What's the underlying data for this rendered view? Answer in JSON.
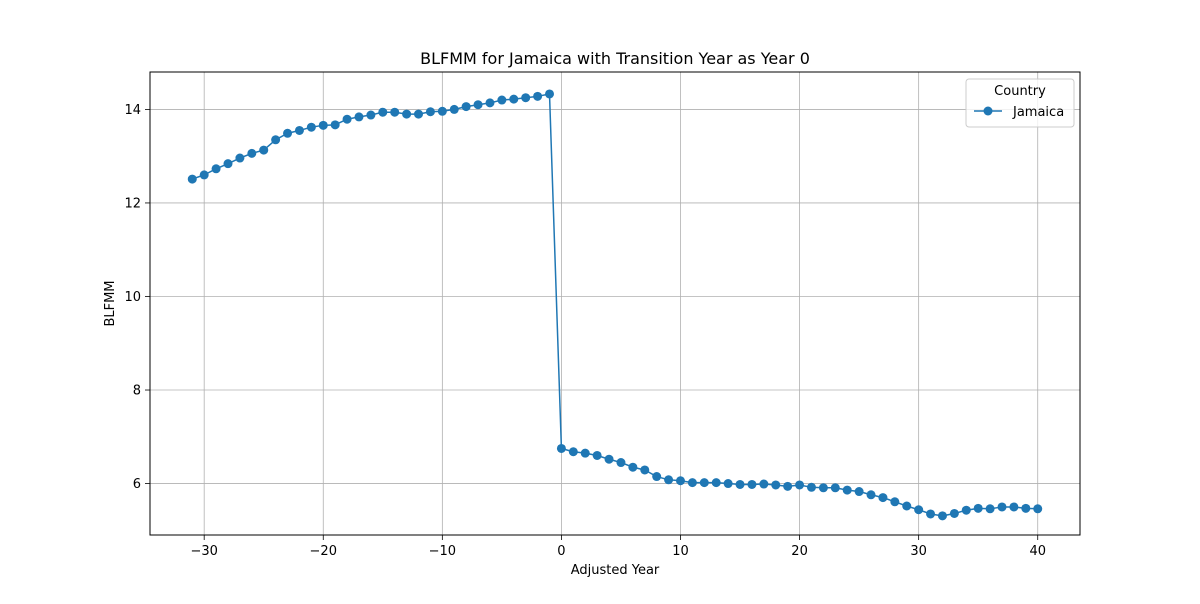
{
  "chart_data": {
    "type": "line",
    "title": "BLFMM for Jamaica with Transition Year as Year 0",
    "xlabel": "Adjusted Year",
    "ylabel": "BLFMM",
    "xlim": [
      -34.55,
      43.55
    ],
    "ylim": [
      4.9,
      14.8
    ],
    "xticks": [
      -30,
      -20,
      -10,
      0,
      10,
      20,
      30,
      40
    ],
    "xtick_labels": [
      "−30",
      "−20",
      "−10",
      "0",
      "10",
      "20",
      "30",
      "40"
    ],
    "yticks": [
      6,
      8,
      10,
      12,
      14
    ],
    "ytick_labels": [
      "6",
      "8",
      "10",
      "12",
      "14"
    ],
    "grid": true,
    "legend": {
      "title": "Country",
      "placement": "top-right"
    },
    "series": [
      {
        "name": "Jamaica",
        "color": "#1f77b4",
        "marker": "circle",
        "x": [
          -31,
          -30,
          -29,
          -28,
          -27,
          -26,
          -25,
          -24,
          -23,
          -22,
          -21,
          -20,
          -19,
          -18,
          -17,
          -16,
          -15,
          -14,
          -13,
          -12,
          -11,
          -10,
          -9,
          -8,
          -7,
          -6,
          -5,
          -4,
          -3,
          -2,
          -1,
          0,
          1,
          2,
          3,
          4,
          5,
          6,
          7,
          8,
          9,
          10,
          11,
          12,
          13,
          14,
          15,
          16,
          17,
          18,
          19,
          20,
          21,
          22,
          23,
          24,
          25,
          26,
          27,
          28,
          29,
          30,
          31,
          32,
          33,
          34,
          35,
          36,
          37,
          38,
          39,
          40
        ],
        "y": [
          12.51,
          12.6,
          12.73,
          12.84,
          12.96,
          13.06,
          13.13,
          13.35,
          13.49,
          13.55,
          13.62,
          13.66,
          13.67,
          13.79,
          13.84,
          13.88,
          13.94,
          13.94,
          13.9,
          13.9,
          13.95,
          13.96,
          14.0,
          14.06,
          14.1,
          14.14,
          14.2,
          14.22,
          14.25,
          14.28,
          14.33,
          6.75,
          6.68,
          6.65,
          6.6,
          6.52,
          6.45,
          6.35,
          6.29,
          6.15,
          6.08,
          6.06,
          6.02,
          6.02,
          6.02,
          6.0,
          5.98,
          5.98,
          5.99,
          5.97,
          5.94,
          5.97,
          5.92,
          5.91,
          5.91,
          5.86,
          5.83,
          5.76,
          5.7,
          5.61,
          5.52,
          5.44,
          5.35,
          5.31,
          5.36,
          5.43,
          5.47,
          5.46,
          5.5,
          5.5,
          5.47,
          5.46
        ]
      }
    ]
  }
}
